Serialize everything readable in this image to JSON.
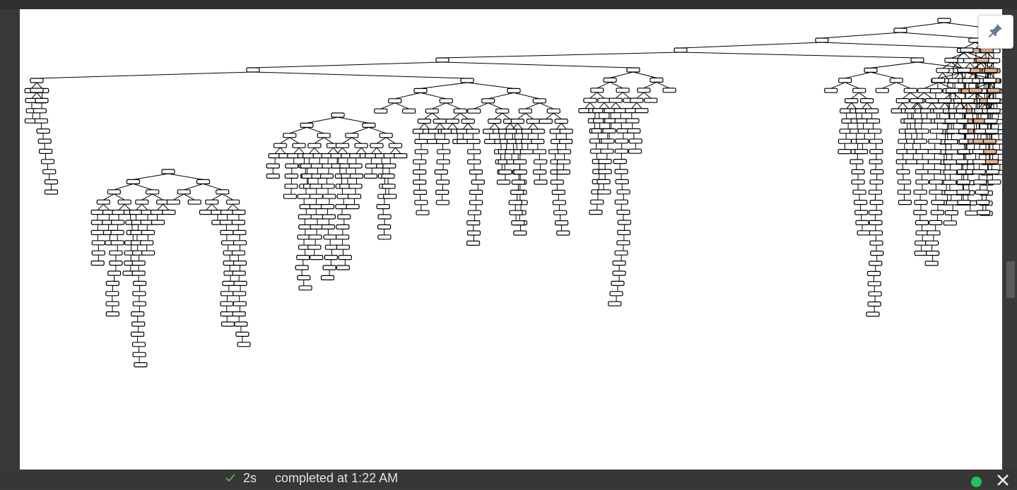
{
  "status": {
    "duration": "2s",
    "completed_text": "completed at 1:22 AM",
    "indicator_color": "#21c35a"
  },
  "icons": {
    "pin": "pin-icon",
    "check": "check-icon",
    "close": "close-icon",
    "kernel": "kernel-status-icon"
  },
  "output": {
    "kind": "decision-tree-plot",
    "node_fill_default": "#ffffff",
    "node_fill_accent": "#e0b090",
    "line_color": "#000000"
  }
}
